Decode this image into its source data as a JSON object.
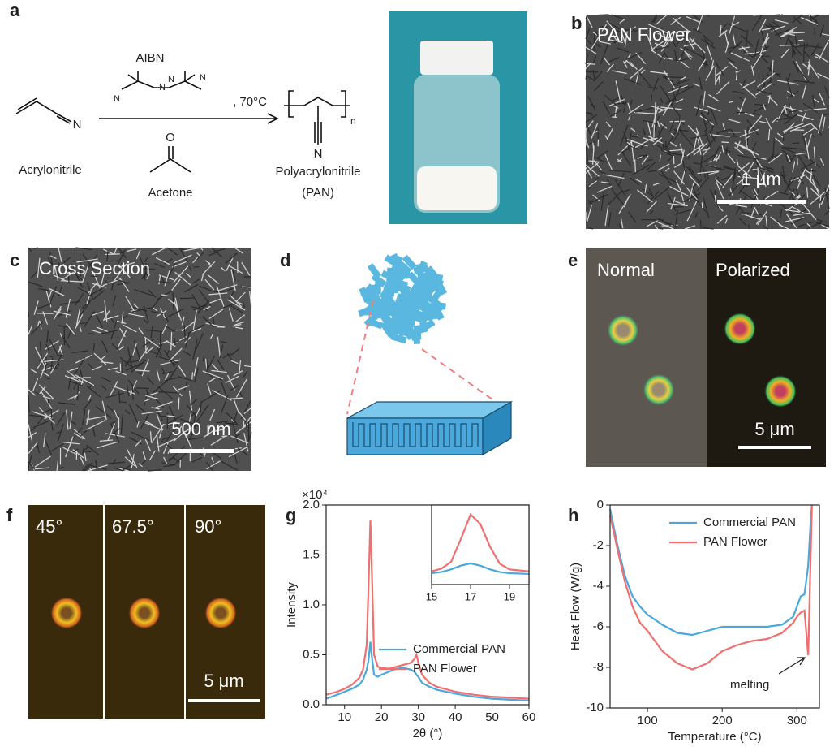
{
  "panels": {
    "a": {
      "label": "a",
      "catalyst": "AIBN",
      "condition": ", 70°C",
      "monomer": "Acrylonitrile",
      "solvent": "Acetone",
      "product": "Polyacrylonitrile",
      "product_abbr": "(PAN)",
      "monomer_atom": "N",
      "aibn_atoms": [
        "N",
        "N",
        "N",
        "N"
      ],
      "solvent_atom": "O",
      "product_atom": "N",
      "repeat": "n"
    },
    "b": {
      "label": "b",
      "title": "PAN Flower",
      "scale": "1 μm"
    },
    "c": {
      "label": "c",
      "title": "Cross Section",
      "scale": "500 nm"
    },
    "d": {
      "label": "d"
    },
    "e": {
      "label": "e",
      "left": "Normal",
      "right": "Polarized",
      "scale": "5 μm"
    },
    "f": {
      "label": "f",
      "angles": [
        "45°",
        "67.5°",
        "90°"
      ],
      "scale": "5 μm"
    },
    "g": {
      "label": "g"
    },
    "h": {
      "label": "h"
    }
  },
  "chart_data": [
    {
      "type": "line",
      "x": [
        5,
        8,
        10,
        12,
        14,
        15,
        16,
        16.5,
        17,
        17.5,
        18,
        19,
        20,
        22,
        24,
        26,
        28,
        29,
        29.5,
        30,
        31,
        33,
        35,
        40,
        45,
        50,
        55,
        60
      ],
      "series": [
        {
          "name": "Commercial PAN",
          "color": "#4aa8dc",
          "values": [
            0.06,
            0.1,
            0.13,
            0.16,
            0.2,
            0.25,
            0.35,
            0.45,
            0.63,
            0.45,
            0.3,
            0.28,
            0.3,
            0.33,
            0.36,
            0.37,
            0.35,
            0.33,
            0.3,
            0.28,
            0.22,
            0.18,
            0.15,
            0.11,
            0.08,
            0.06,
            0.05,
            0.04
          ]
        },
        {
          "name": "PAN Flower",
          "color": "#f07070",
          "values": [
            0.1,
            0.13,
            0.16,
            0.2,
            0.27,
            0.35,
            0.6,
            1.2,
            1.85,
            1.2,
            0.5,
            0.38,
            0.37,
            0.36,
            0.38,
            0.4,
            0.42,
            0.46,
            0.5,
            0.42,
            0.3,
            0.22,
            0.18,
            0.13,
            0.1,
            0.08,
            0.07,
            0.06
          ]
        }
      ],
      "xlim": [
        5,
        60
      ],
      "ylim": [
        0,
        2
      ],
      "xticks": [
        10,
        20,
        30,
        40,
        50,
        60
      ],
      "yticks": [
        {
          "value": 0,
          "label": "0.0"
        },
        0.5,
        {
          "value": 1,
          "label": "1.0"
        },
        1.5,
        {
          "value": 2,
          "label": "2.0"
        }
      ],
      "xlabel": "2θ (°)",
      "ylabel": "Intensity",
      "y_multiplier": "×10⁴",
      "legend": "center right",
      "grid": false
    },
    {
      "type": "line",
      "x": [
        15,
        15.5,
        16,
        16.5,
        17,
        17.5,
        18,
        18.5,
        19,
        20
      ],
      "series": [
        {
          "color": "#4aa8dc",
          "values": [
            0.3,
            0.33,
            0.4,
            0.5,
            0.56,
            0.5,
            0.4,
            0.33,
            0.3,
            0.28
          ]
        },
        {
          "color": "#f07070",
          "values": [
            0.35,
            0.42,
            0.6,
            1.2,
            1.85,
            1.6,
            1.0,
            0.55,
            0.4,
            0.35
          ]
        }
      ],
      "xlim": [
        15,
        20
      ],
      "ylim": [
        0,
        2.1
      ],
      "xticks": [
        15,
        17,
        19
      ],
      "grid": false
    },
    {
      "type": "line",
      "x": [
        50,
        60,
        70,
        80,
        90,
        100,
        120,
        140,
        160,
        180,
        200,
        220,
        240,
        260,
        280,
        295,
        300,
        305,
        310,
        315,
        318,
        320
      ],
      "series": [
        {
          "name": "Commercial PAN",
          "color": "#4aa8dc",
          "values": [
            -0.2,
            -2,
            -3.5,
            -4.5,
            -5,
            -5.4,
            -5.9,
            -6.3,
            -6.4,
            -6.2,
            -6,
            -6,
            -6,
            -6,
            -5.9,
            -5.5,
            -5,
            -4.5,
            -4.4,
            -3,
            -1,
            0
          ]
        },
        {
          "name": "PAN Flower",
          "color": "#f07070",
          "values": [
            -0.5,
            -2.2,
            -3.8,
            -5,
            -5.8,
            -6.2,
            -7.2,
            -7.8,
            -8.1,
            -7.8,
            -7.2,
            -6.9,
            -6.7,
            -6.6,
            -6.3,
            -5.8,
            -5.5,
            -5.3,
            -5.2,
            -7.4,
            -3,
            0
          ]
        }
      ],
      "xlim": [
        50,
        330
      ],
      "ylim": [
        -10,
        0
      ],
      "xticks": [
        100,
        200,
        300
      ],
      "yticks": [
        0,
        -2,
        -4,
        -6,
        -8,
        -10
      ],
      "xlabel": "Temperature (°C)",
      "ylabel": "Heat Flow (W/g)",
      "annotation": "melting",
      "legend": "upper right",
      "grid": false
    }
  ]
}
